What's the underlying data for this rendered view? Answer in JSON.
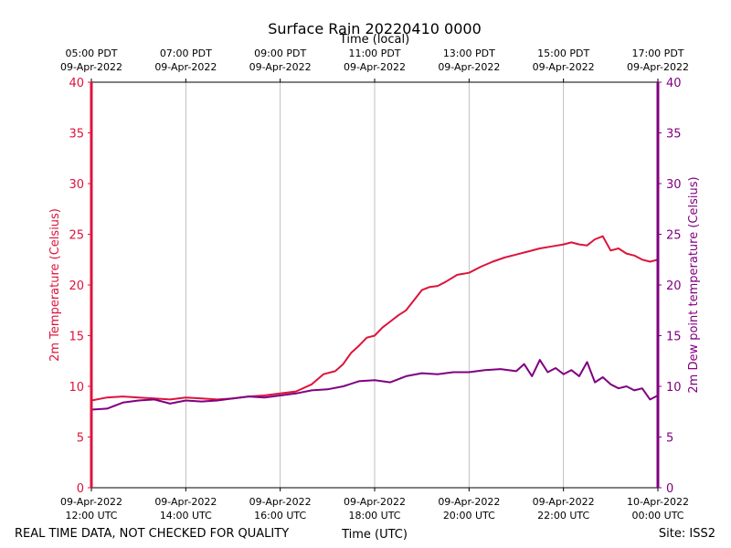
{
  "colors": {
    "temperature": "#dc143c",
    "dewpoint": "#800080",
    "grid": "#b0b0b0",
    "axis": "#000000"
  },
  "footer": {
    "quality_note": "REAL TIME DATA, NOT CHECKED FOR QUALITY",
    "site": "Site: ISS2"
  },
  "chart_data": {
    "type": "line",
    "title": "Surface Rain 20220410 0000",
    "xlabel": "Time (UTC)",
    "x2label": "Time (local)",
    "ylabel": "2m Temperature (Celsius)",
    "y2label": "2m Dew point temperature (Celsius)",
    "ylim": [
      0,
      40
    ],
    "y2lim": [
      0,
      40
    ],
    "yticks": [
      0,
      5,
      10,
      15,
      20,
      25,
      30,
      35,
      40
    ],
    "xlim": [
      "2022-04-09T12:00Z",
      "2022-04-10T00:00Z"
    ],
    "grid": "vertical",
    "xticks": [
      {
        "x": "2022-04-09T12:00Z",
        "line1": "09-Apr-2022",
        "line2": "12:00 UTC"
      },
      {
        "x": "2022-04-09T14:00Z",
        "line1": "09-Apr-2022",
        "line2": "14:00 UTC"
      },
      {
        "x": "2022-04-09T16:00Z",
        "line1": "09-Apr-2022",
        "line2": "16:00 UTC"
      },
      {
        "x": "2022-04-09T18:00Z",
        "line1": "09-Apr-2022",
        "line2": "18:00 UTC"
      },
      {
        "x": "2022-04-09T20:00Z",
        "line1": "09-Apr-2022",
        "line2": "20:00 UTC"
      },
      {
        "x": "2022-04-09T22:00Z",
        "line1": "09-Apr-2022",
        "line2": "22:00 UTC"
      },
      {
        "x": "2022-04-10T00:00Z",
        "line1": "10-Apr-2022",
        "line2": "00:00 UTC"
      }
    ],
    "x2ticks": [
      {
        "x": "2022-04-09T12:00Z",
        "line1": "05:00 PDT",
        "line2": "09-Apr-2022"
      },
      {
        "x": "2022-04-09T14:00Z",
        "line1": "07:00 PDT",
        "line2": "09-Apr-2022"
      },
      {
        "x": "2022-04-09T16:00Z",
        "line1": "09:00 PDT",
        "line2": "09-Apr-2022"
      },
      {
        "x": "2022-04-09T18:00Z",
        "line1": "11:00 PDT",
        "line2": "09-Apr-2022"
      },
      {
        "x": "2022-04-09T20:00Z",
        "line1": "13:00 PDT",
        "line2": "09-Apr-2022"
      },
      {
        "x": "2022-04-09T22:00Z",
        "line1": "15:00 PDT",
        "line2": "09-Apr-2022"
      },
      {
        "x": "2022-04-10T00:00Z",
        "line1": "17:00 PDT",
        "line2": "09-Apr-2022"
      }
    ],
    "series": [
      {
        "axis": "left",
        "color": "#dc143c",
        "x": [
          "2022-04-09T12:00Z",
          "2022-04-09T12:20Z",
          "2022-04-09T12:40Z",
          "2022-04-09T13:00Z",
          "2022-04-09T13:20Z",
          "2022-04-09T13:40Z",
          "2022-04-09T14:00Z",
          "2022-04-09T14:20Z",
          "2022-04-09T14:40Z",
          "2022-04-09T15:00Z",
          "2022-04-09T15:20Z",
          "2022-04-09T15:40Z",
          "2022-04-09T16:00Z",
          "2022-04-09T16:20Z",
          "2022-04-09T16:40Z",
          "2022-04-09T16:55Z",
          "2022-04-09T17:10Z",
          "2022-04-09T17:20Z",
          "2022-04-09T17:30Z",
          "2022-04-09T17:40Z",
          "2022-04-09T17:50Z",
          "2022-04-09T18:00Z",
          "2022-04-09T18:10Z",
          "2022-04-09T18:20Z",
          "2022-04-09T18:30Z",
          "2022-04-09T18:40Z",
          "2022-04-09T18:50Z",
          "2022-04-09T19:00Z",
          "2022-04-09T19:10Z",
          "2022-04-09T19:20Z",
          "2022-04-09T19:30Z",
          "2022-04-09T19:45Z",
          "2022-04-09T20:00Z",
          "2022-04-09T20:15Z",
          "2022-04-09T20:30Z",
          "2022-04-09T20:45Z",
          "2022-04-09T21:00Z",
          "2022-04-09T21:15Z",
          "2022-04-09T21:30Z",
          "2022-04-09T21:45Z",
          "2022-04-09T22:00Z",
          "2022-04-09T22:10Z",
          "2022-04-09T22:20Z",
          "2022-04-09T22:30Z",
          "2022-04-09T22:40Z",
          "2022-04-09T22:50Z",
          "2022-04-09T23:00Z",
          "2022-04-09T23:10Z",
          "2022-04-09T23:20Z",
          "2022-04-09T23:30Z",
          "2022-04-09T23:40Z",
          "2022-04-09T23:50Z",
          "2022-04-10T00:00Z"
        ],
        "values": [
          8.6,
          8.9,
          9.0,
          8.9,
          8.8,
          8.7,
          8.9,
          8.8,
          8.7,
          8.8,
          9.0,
          9.1,
          9.3,
          9.5,
          10.2,
          11.2,
          11.5,
          12.2,
          13.3,
          14.0,
          14.8,
          15.0,
          15.8,
          16.4,
          17.0,
          17.5,
          18.5,
          19.5,
          19.8,
          19.9,
          20.3,
          21.0,
          21.2,
          21.8,
          22.3,
          22.7,
          23.0,
          23.3,
          23.6,
          23.8,
          24.0,
          24.2,
          24.0,
          23.9,
          24.5,
          24.8,
          23.4,
          23.6,
          23.1,
          22.9,
          22.5,
          22.3,
          22.5
        ]
      },
      {
        "axis": "right",
        "color": "#800080",
        "x": [
          "2022-04-09T12:00Z",
          "2022-04-09T12:20Z",
          "2022-04-09T12:40Z",
          "2022-04-09T13:00Z",
          "2022-04-09T13:20Z",
          "2022-04-09T13:40Z",
          "2022-04-09T14:00Z",
          "2022-04-09T14:20Z",
          "2022-04-09T14:40Z",
          "2022-04-09T15:00Z",
          "2022-04-09T15:20Z",
          "2022-04-09T15:40Z",
          "2022-04-09T16:00Z",
          "2022-04-09T16:20Z",
          "2022-04-09T16:40Z",
          "2022-04-09T17:00Z",
          "2022-04-09T17:20Z",
          "2022-04-09T17:40Z",
          "2022-04-09T18:00Z",
          "2022-04-09T18:20Z",
          "2022-04-09T18:40Z",
          "2022-04-09T19:00Z",
          "2022-04-09T19:20Z",
          "2022-04-09T19:40Z",
          "2022-04-09T20:00Z",
          "2022-04-09T20:20Z",
          "2022-04-09T20:40Z",
          "2022-04-09T21:00Z",
          "2022-04-09T21:10Z",
          "2022-04-09T21:20Z",
          "2022-04-09T21:30Z",
          "2022-04-09T21:40Z",
          "2022-04-09T21:50Z",
          "2022-04-09T22:00Z",
          "2022-04-09T22:10Z",
          "2022-04-09T22:20Z",
          "2022-04-09T22:30Z",
          "2022-04-09T22:40Z",
          "2022-04-09T22:50Z",
          "2022-04-09T23:00Z",
          "2022-04-09T23:10Z",
          "2022-04-09T23:20Z",
          "2022-04-09T23:30Z",
          "2022-04-09T23:40Z",
          "2022-04-09T23:50Z",
          "2022-04-10T00:00Z"
        ],
        "values": [
          7.7,
          7.8,
          8.4,
          8.6,
          8.7,
          8.3,
          8.6,
          8.5,
          8.6,
          8.8,
          9.0,
          8.9,
          9.1,
          9.3,
          9.6,
          9.7,
          10.0,
          10.5,
          10.6,
          10.4,
          11.0,
          11.3,
          11.2,
          11.4,
          11.4,
          11.6,
          11.7,
          11.5,
          12.2,
          11.0,
          12.6,
          11.4,
          11.8,
          11.2,
          11.6,
          11.0,
          12.4,
          10.4,
          10.9,
          10.2,
          9.8,
          10.0,
          9.6,
          9.8,
          8.7,
          9.1
        ]
      }
    ]
  }
}
